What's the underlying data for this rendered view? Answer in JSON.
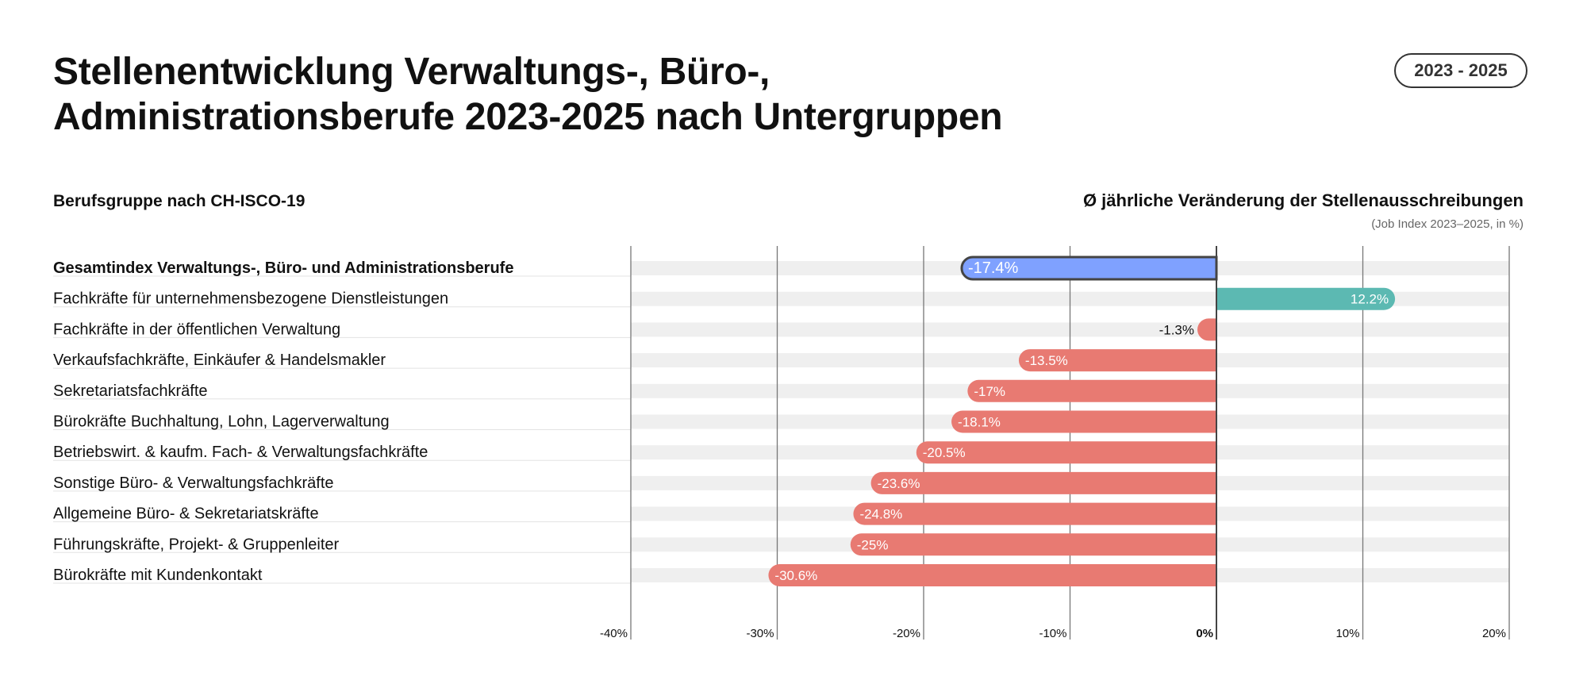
{
  "header": {
    "title_line1": "Stellenentwicklung Verwaltungs-, Büro-,",
    "title_line2": "Administrationsberufe 2023-2025 nach Untergruppen",
    "badge": "2023 - 2025"
  },
  "chart_data": {
    "type": "bar",
    "orientation": "horizontal",
    "categories_label": "Berufsgruppe nach CH-ISCO-19",
    "title": "Ø jährliche Veränderung der Stellenausschreibungen",
    "subtitle": "(Job Index 2023–2025, in %)",
    "categories": [
      "Gesamtindex Verwaltungs-, Büro- und Administrationsberufe",
      "Fachkräfte für unternehmensbezogene Dienstleistungen",
      "Fachkräfte in der öffentlichen Verwaltung",
      "Verkaufsfachkräfte, Einkäufer & Handelsmakler",
      "Sekretariatsfachkräfte",
      "Bürokräfte Buchhaltung, Lohn, Lagerverwaltung",
      "Betriebswirt. & kaufm. Fach- & Verwaltungsfachkräfte",
      "Sonstige Büro- & Verwaltungsfachkräfte",
      "Allgemeine Büro- & Sekretariatskräfte",
      "Führungskräfte, Projekt- & Gruppenleiter",
      "Bürokräfte mit Kundenkontakt"
    ],
    "values": [
      -17.4,
      12.2,
      -1.3,
      -13.5,
      -17,
      -18.1,
      -20.5,
      -23.6,
      -24.8,
      -25,
      -30.6
    ],
    "data_labels": [
      "-17.4%",
      "12.2%",
      "-1.3%",
      "-13.5%",
      "-17%",
      "-18.1%",
      "-20.5%",
      "-23.6%",
      "-24.8%",
      "-25%",
      "-30.6%"
    ],
    "xlim": [
      -40,
      20
    ],
    "xticks": [
      -40,
      -30,
      -20,
      -10,
      0,
      10,
      20
    ],
    "xtick_labels": [
      "-40%",
      "-30%",
      "-20%",
      "-10%",
      "0%",
      "10%",
      "20%"
    ],
    "grid": true,
    "colors": {
      "total": "#7fa1ff",
      "positive": "#5cb9b2",
      "negative": "#e87a72",
      "band": "#efefef"
    }
  }
}
